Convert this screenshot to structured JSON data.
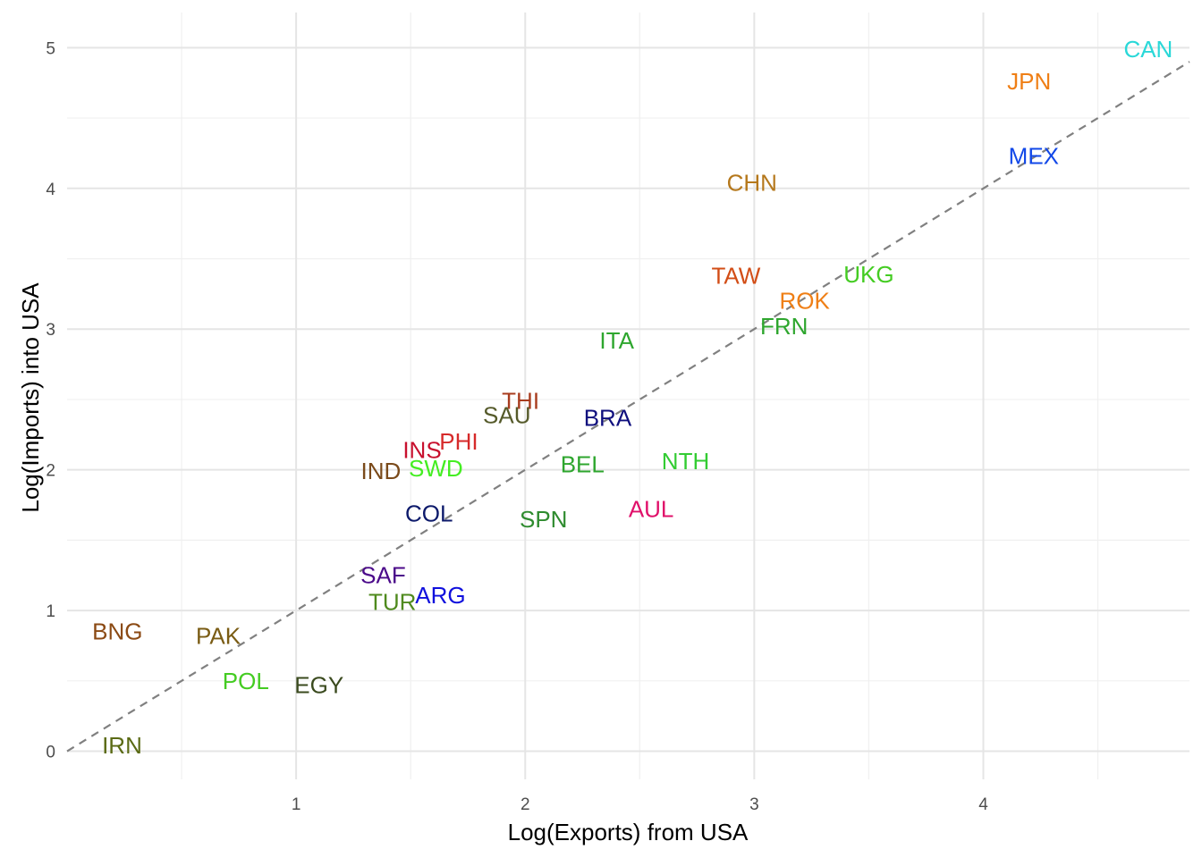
{
  "chart_data": {
    "type": "scatter",
    "xlabel": "Log(Exports) from USA",
    "ylabel": "Log(Imports) into USA",
    "xlim": [
      0,
      4.9
    ],
    "ylim": [
      -0.2,
      5.25
    ],
    "x_ticks": [
      1,
      2,
      3,
      4
    ],
    "y_ticks": [
      0,
      1,
      2,
      3,
      4,
      5
    ],
    "reference_line": {
      "slope": 1,
      "intercept": 0,
      "style": "dashed",
      "color": "#808080"
    },
    "grid": true,
    "points": [
      {
        "label": "CAN",
        "x": 4.72,
        "y": 4.99,
        "color": "#2ad8d8"
      },
      {
        "label": "JPN",
        "x": 4.2,
        "y": 4.76,
        "color": "#ef7f16"
      },
      {
        "label": "MEX",
        "x": 4.22,
        "y": 4.23,
        "color": "#1248e8"
      },
      {
        "label": "CHN",
        "x": 2.99,
        "y": 4.04,
        "color": "#b5781c"
      },
      {
        "label": "TAW",
        "x": 2.92,
        "y": 3.38,
        "color": "#d24d16"
      },
      {
        "label": "UKG",
        "x": 3.5,
        "y": 3.39,
        "color": "#44cc22"
      },
      {
        "label": "ROK",
        "x": 3.22,
        "y": 3.2,
        "color": "#ef7f16"
      },
      {
        "label": "FRN",
        "x": 3.13,
        "y": 3.02,
        "color": "#2ea62e"
      },
      {
        "label": "ITA",
        "x": 2.4,
        "y": 2.92,
        "color": "#2ea62e"
      },
      {
        "label": "THI",
        "x": 1.98,
        "y": 2.49,
        "color": "#a83c1e"
      },
      {
        "label": "SAU",
        "x": 1.92,
        "y": 2.39,
        "color": "#555a2a"
      },
      {
        "label": "BRA",
        "x": 2.36,
        "y": 2.37,
        "color": "#10107e"
      },
      {
        "label": "PHI",
        "x": 1.71,
        "y": 2.2,
        "color": "#d62a2a"
      },
      {
        "label": "INS",
        "x": 1.55,
        "y": 2.14,
        "color": "#c8102e"
      },
      {
        "label": "IND",
        "x": 1.37,
        "y": 1.99,
        "color": "#7a4a1a"
      },
      {
        "label": "SWD",
        "x": 1.61,
        "y": 2.01,
        "color": "#44ee22"
      },
      {
        "label": "BEL",
        "x": 2.25,
        "y": 2.04,
        "color": "#2ea62e"
      },
      {
        "label": "NTH",
        "x": 2.7,
        "y": 2.06,
        "color": "#33cc33"
      },
      {
        "label": "COL",
        "x": 1.58,
        "y": 1.69,
        "color": "#0d1a6b"
      },
      {
        "label": "SPN",
        "x": 2.08,
        "y": 1.65,
        "color": "#2e8b2e"
      },
      {
        "label": "AUL",
        "x": 2.55,
        "y": 1.72,
        "color": "#e0106a"
      },
      {
        "label": "SAF",
        "x": 1.38,
        "y": 1.25,
        "color": "#4b0a8a"
      },
      {
        "label": "ARG",
        "x": 1.63,
        "y": 1.11,
        "color": "#1010dd"
      },
      {
        "label": "TUR",
        "x": 1.42,
        "y": 1.06,
        "color": "#4f8a1e"
      },
      {
        "label": "BNG",
        "x": 0.22,
        "y": 0.85,
        "color": "#8b4a14"
      },
      {
        "label": "PAK",
        "x": 0.66,
        "y": 0.82,
        "color": "#7a5c14"
      },
      {
        "label": "POL",
        "x": 0.78,
        "y": 0.5,
        "color": "#44cc22"
      },
      {
        "label": "EGY",
        "x": 1.1,
        "y": 0.47,
        "color": "#3a4a1e"
      },
      {
        "label": "IRN",
        "x": 0.24,
        "y": 0.04,
        "color": "#5a6a14"
      }
    ]
  }
}
